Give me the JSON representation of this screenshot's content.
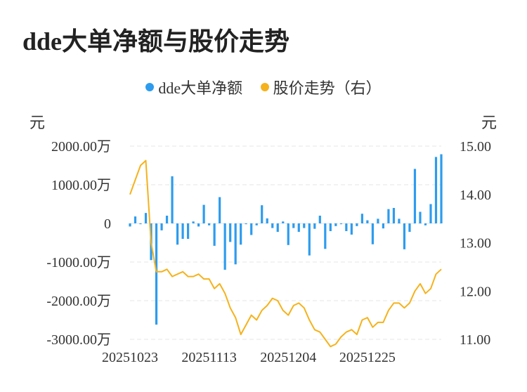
{
  "chart_data": {
    "type": "bar+line",
    "title": "dde大单净额与股价走势",
    "legend": [
      {
        "name": "dde大单净额",
        "color": "#2d9cee"
      },
      {
        "name": "股价走势（右）",
        "color": "#f5b21b"
      }
    ],
    "y_left_unit": "元",
    "y_right_unit": "元",
    "y_left_ticks": [
      "2000.00万",
      "1000.00万",
      "0",
      "-1000.00万",
      "-2000.00万",
      "-3000.00万"
    ],
    "y_left_range": [
      -3000,
      2000
    ],
    "y_right_ticks": [
      "15.00",
      "14.00",
      "13.00",
      "12.00",
      "11.00"
    ],
    "y_right_range": [
      11,
      15
    ],
    "x_tick_labels": [
      "20251023",
      "20251113",
      "20251204",
      "20251225"
    ],
    "x_tick_indices": [
      0,
      15,
      30,
      45
    ],
    "series": [
      {
        "name": "dde大单净额",
        "type": "bar",
        "unit": "万",
        "values": [
          -80,
          180,
          -20,
          270,
          -950,
          -2620,
          -180,
          200,
          1220,
          -550,
          -400,
          -400,
          50,
          -80,
          480,
          -50,
          -580,
          680,
          -1200,
          -480,
          -1060,
          -550,
          -20,
          -300,
          -50,
          470,
          130,
          -120,
          -220,
          50,
          -560,
          -120,
          -220,
          -120,
          -830,
          -140,
          200,
          -660,
          -200,
          -70,
          -20,
          -200,
          -290,
          -70,
          250,
          80,
          -540,
          120,
          -130,
          370,
          400,
          120,
          -670,
          -220,
          1410,
          300,
          -50,
          500,
          1720,
          1790
        ]
      },
      {
        "name": "股价走势（右）",
        "type": "line",
        "values": [
          14.0,
          14.3,
          14.6,
          14.7,
          13.0,
          12.4,
          12.4,
          12.45,
          12.3,
          12.35,
          12.4,
          12.3,
          12.3,
          12.35,
          12.25,
          12.25,
          12.05,
          12.15,
          11.95,
          11.65,
          11.45,
          11.1,
          11.3,
          11.5,
          11.4,
          11.6,
          11.7,
          11.85,
          11.8,
          11.6,
          11.5,
          11.7,
          11.75,
          11.65,
          11.4,
          11.2,
          11.15,
          11.0,
          10.85,
          10.9,
          11.05,
          11.15,
          11.2,
          11.1,
          11.4,
          11.45,
          11.25,
          11.35,
          11.35,
          11.6,
          11.75,
          11.75,
          11.65,
          11.75,
          12.0,
          12.15,
          11.95,
          12.05,
          12.35,
          12.45
        ]
      }
    ],
    "grid": true
  }
}
